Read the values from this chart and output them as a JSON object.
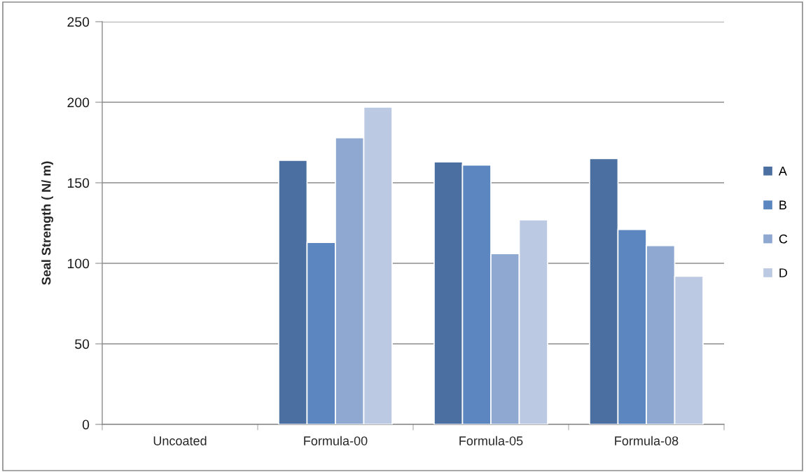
{
  "chart_data": {
    "type": "bar",
    "ylabel": "Seal Strength ( N/ m)",
    "categories": [
      "Uncoated",
      "Formula-00",
      "Formula-05",
      "Formula-08"
    ],
    "series": [
      {
        "name": "A",
        "color": "#4a6fa0",
        "values": [
          null,
          164,
          163,
          165
        ]
      },
      {
        "name": "B",
        "color": "#5b86bf",
        "values": [
          null,
          113,
          161,
          121
        ]
      },
      {
        "name": "C",
        "color": "#8fa8d2",
        "values": [
          null,
          178,
          106,
          111
        ]
      },
      {
        "name": "D",
        "color": "#bcc9e2",
        "values": [
          null,
          197,
          127,
          92
        ]
      }
    ],
    "ylim": [
      0,
      250
    ],
    "yticks": [
      0,
      50,
      100,
      150,
      200,
      250
    ],
    "grid": "y",
    "legend": "right"
  }
}
